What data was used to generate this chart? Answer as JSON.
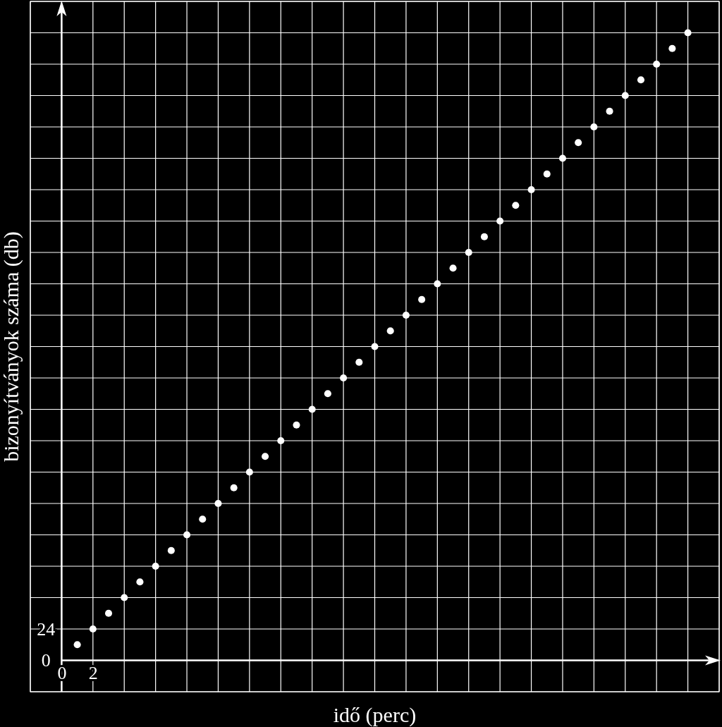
{
  "chart_data": {
    "type": "scatter",
    "xlabel": "idő (perc)",
    "ylabel": "bizonyítványok száma (db)",
    "x": [
      1,
      2,
      3,
      4,
      5,
      6,
      7,
      8,
      9,
      10,
      11,
      12,
      13,
      14,
      15,
      16,
      17,
      18,
      19,
      20,
      21,
      22,
      23,
      24,
      25,
      26,
      27,
      28,
      29,
      30,
      31,
      32,
      33,
      34,
      35,
      36,
      37,
      38,
      39,
      40
    ],
    "series": [
      {
        "color": "#ffffff",
        "values": [
          12,
          24,
          36,
          48,
          60,
          72,
          84,
          96,
          108,
          120,
          132,
          144,
          156,
          168,
          180,
          192,
          204,
          216,
          228,
          240,
          252,
          264,
          276,
          288,
          300,
          312,
          324,
          336,
          348,
          360,
          372,
          384,
          396,
          408,
          420,
          432,
          444,
          456,
          468,
          480
        ]
      }
    ],
    "xlim": [
      -2,
      42
    ],
    "ylim": [
      -24,
      504
    ],
    "xticks": [
      {
        "value": -2,
        "label": null
      },
      0,
      2,
      {
        "value": 4,
        "label": null
      },
      {
        "value": 6,
        "label": null
      },
      {
        "value": 8,
        "label": null
      },
      {
        "value": 10,
        "label": null
      },
      {
        "value": 12,
        "label": null
      },
      {
        "value": 14,
        "label": null
      },
      {
        "value": 16,
        "label": null
      },
      {
        "value": 18,
        "label": null
      },
      {
        "value": 20,
        "label": null
      },
      {
        "value": 22,
        "label": null
      },
      {
        "value": 24,
        "label": null
      },
      {
        "value": 26,
        "label": null
      },
      {
        "value": 28,
        "label": null
      },
      {
        "value": 30,
        "label": null
      },
      {
        "value": 32,
        "label": null
      },
      {
        "value": 34,
        "label": null
      },
      {
        "value": 36,
        "label": null
      },
      {
        "value": 38,
        "label": null
      },
      {
        "value": 40,
        "label": null
      },
      {
        "value": 42,
        "label": null
      }
    ],
    "yticks": [
      {
        "value": -24,
        "label": null
      },
      0,
      24,
      {
        "value": 48,
        "label": null
      },
      {
        "value": 72,
        "label": null
      },
      {
        "value": 96,
        "label": null
      },
      {
        "value": 120,
        "label": null
      },
      {
        "value": 144,
        "label": null
      },
      {
        "value": 168,
        "label": null
      },
      {
        "value": 192,
        "label": null
      },
      {
        "value": 216,
        "label": null
      },
      {
        "value": 240,
        "label": null
      },
      {
        "value": 264,
        "label": null
      },
      {
        "value": 288,
        "label": null
      },
      {
        "value": 312,
        "label": null
      },
      {
        "value": 336,
        "label": null
      },
      {
        "value": 360,
        "label": null
      },
      {
        "value": 384,
        "label": null
      },
      {
        "value": 408,
        "label": null
      },
      {
        "value": 432,
        "label": null
      },
      {
        "value": 456,
        "label": null
      },
      {
        "value": 480,
        "label": null
      },
      {
        "value": 504,
        "label": null
      }
    ],
    "grid": true,
    "marker": "circle"
  }
}
